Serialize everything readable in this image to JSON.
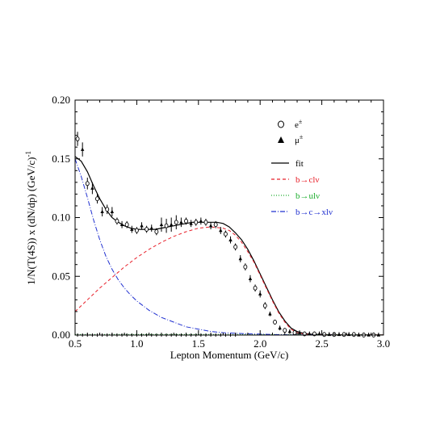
{
  "chart_data": {
    "type": "line",
    "xlabel": "Lepton Momentum (GeV/c)",
    "ylabel": "1/N(T(4S)) x (dN/dp)  (GeV/c)",
    "ylabel_sup": "-1",
    "xlim": [
      0.5,
      3.0
    ],
    "ylim": [
      0.0,
      0.2
    ],
    "x_ticks": [
      {
        "value": 0.5,
        "label": "0.5"
      },
      {
        "value": 1.0,
        "label": "1.0"
      },
      {
        "value": 1.5,
        "label": "1.5"
      },
      {
        "value": 2.0,
        "label": "2.0"
      },
      {
        "value": 2.5,
        "label": "2.5"
      },
      {
        "value": 3.0,
        "label": "3.0"
      }
    ],
    "y_ticks": [
      {
        "value": 0.0,
        "label": "0.00"
      },
      {
        "value": 0.05,
        "label": "0.05"
      },
      {
        "value": 0.1,
        "label": "0.10"
      },
      {
        "value": 0.15,
        "label": "0.15"
      },
      {
        "value": 0.2,
        "label": "0.20"
      }
    ],
    "grid": false,
    "legend_position": "top-right",
    "markers": [
      {
        "key": "e",
        "label": "e",
        "sup": "±",
        "symbol": "open-circle"
      },
      {
        "key": "mu",
        "label": "μ",
        "sup": "±",
        "symbol": "filled-triangle"
      }
    ],
    "series": [
      {
        "key": "fit",
        "name": "fit",
        "color": "#000000",
        "dash": "solid",
        "x": [
          0.5,
          0.55,
          0.6,
          0.65,
          0.7,
          0.75,
          0.8,
          0.85,
          0.9,
          0.95,
          1.0,
          1.05,
          1.1,
          1.15,
          1.2,
          1.25,
          1.3,
          1.35,
          1.4,
          1.45,
          1.5,
          1.55,
          1.6,
          1.65,
          1.7,
          1.75,
          1.8,
          1.85,
          1.9,
          1.95,
          2.0,
          2.05,
          2.1,
          2.15,
          2.2,
          2.25,
          2.3,
          2.35,
          2.4,
          2.5,
          2.6,
          2.7,
          2.8,
          2.9,
          3.0
        ],
        "y": [
          0.152,
          0.148,
          0.139,
          0.127,
          0.116,
          0.107,
          0.1,
          0.096,
          0.093,
          0.091,
          0.09,
          0.09,
          0.09,
          0.09,
          0.091,
          0.092,
          0.093,
          0.094,
          0.095,
          0.096,
          0.096,
          0.096,
          0.096,
          0.096,
          0.095,
          0.092,
          0.087,
          0.081,
          0.073,
          0.063,
          0.052,
          0.041,
          0.03,
          0.02,
          0.012,
          0.006,
          0.003,
          0.0015,
          0.0008,
          0.0004,
          0.0002,
          0.0001,
          0.0001,
          0.0001,
          0.0001
        ]
      },
      {
        "key": "bcl",
        "name": "b→clν",
        "color": "#e8202a",
        "dash": "dashed",
        "x": [
          0.5,
          0.6,
          0.7,
          0.8,
          0.9,
          1.0,
          1.1,
          1.2,
          1.3,
          1.4,
          1.5,
          1.6,
          1.7,
          1.75,
          1.8,
          1.85,
          1.9,
          1.95,
          2.0,
          2.05,
          2.1,
          2.15,
          2.2,
          2.25,
          2.3,
          2.35,
          2.4,
          2.5,
          2.6,
          2.7,
          2.8,
          2.9,
          3.0
        ],
        "y": [
          0.02,
          0.03,
          0.04,
          0.049,
          0.058,
          0.066,
          0.073,
          0.079,
          0.084,
          0.088,
          0.091,
          0.092,
          0.091,
          0.089,
          0.085,
          0.079,
          0.071,
          0.062,
          0.051,
          0.04,
          0.029,
          0.019,
          0.011,
          0.005,
          0.002,
          0.001,
          0.0005,
          0.0002,
          0.0001,
          0.0001,
          0.0001,
          0.0001,
          0.0001
        ]
      },
      {
        "key": "bul",
        "name": "b→ulν",
        "color": "#1fae2f",
        "dash": "dotted",
        "x": [
          0.5,
          1.0,
          1.5,
          2.0,
          2.5,
          3.0
        ],
        "y": [
          0.0005,
          0.0005,
          0.0005,
          0.0005,
          0.0003,
          0.0001
        ]
      },
      {
        "key": "bcxl",
        "name": "b→c→xlν",
        "color": "#2030d0",
        "dash": "dashdot",
        "x": [
          0.5,
          0.55,
          0.6,
          0.65,
          0.7,
          0.75,
          0.8,
          0.85,
          0.9,
          0.95,
          1.0,
          1.1,
          1.2,
          1.3,
          1.4,
          1.5,
          1.6,
          1.7,
          1.8,
          1.9,
          2.0,
          2.1,
          2.2,
          2.3,
          2.5,
          2.75,
          3.0
        ],
        "y": [
          0.15,
          0.135,
          0.117,
          0.098,
          0.081,
          0.067,
          0.056,
          0.047,
          0.04,
          0.034,
          0.029,
          0.021,
          0.015,
          0.011,
          0.007,
          0.005,
          0.003,
          0.002,
          0.0015,
          0.001,
          0.0008,
          0.0005,
          0.0003,
          0.0002,
          0.0001,
          0.0,
          0.0
        ]
      }
    ],
    "data_points": {
      "x": [
        0.52,
        0.56,
        0.6,
        0.64,
        0.68,
        0.72,
        0.76,
        0.8,
        0.84,
        0.88,
        0.92,
        0.96,
        1.0,
        1.04,
        1.08,
        1.12,
        1.16,
        1.2,
        1.24,
        1.28,
        1.32,
        1.36,
        1.4,
        1.44,
        1.48,
        1.52,
        1.56,
        1.6,
        1.64,
        1.68,
        1.72,
        1.76,
        1.8,
        1.84,
        1.88,
        1.92,
        1.96,
        2.0,
        2.04,
        2.08,
        2.12,
        2.16,
        2.2,
        2.24,
        2.28,
        2.32,
        2.36,
        2.4,
        2.44,
        2.48,
        2.52,
        2.56,
        2.6,
        2.64,
        2.68,
        2.72,
        2.76,
        2.8,
        2.84,
        2.88,
        2.92,
        2.96
      ],
      "y": [
        0.167,
        0.158,
        0.129,
        0.125,
        0.116,
        0.105,
        0.107,
        0.105,
        0.097,
        0.094,
        0.094,
        0.09,
        0.089,
        0.093,
        0.09,
        0.091,
        0.088,
        0.094,
        0.093,
        0.094,
        0.096,
        0.096,
        0.097,
        0.095,
        0.096,
        0.097,
        0.096,
        0.093,
        0.094,
        0.089,
        0.086,
        0.081,
        0.075,
        0.065,
        0.058,
        0.048,
        0.04,
        0.035,
        0.025,
        0.018,
        0.011,
        0.006,
        0.004,
        0.003,
        0.002,
        0.002,
        0.001,
        0.001,
        0.001,
        0.001,
        0.0005,
        0.0005,
        0.0005,
        0.0005,
        0.0005,
        0.0005,
        0.0005,
        0.0,
        0.0,
        0.0,
        0.0,
        0.0
      ],
      "err": [
        0.006,
        0.006,
        0.005,
        0.005,
        0.004,
        0.004,
        0.004,
        0.004,
        0.003,
        0.003,
        0.003,
        0.003,
        0.003,
        0.003,
        0.003,
        0.003,
        0.003,
        0.006,
        0.006,
        0.006,
        0.006,
        0.004,
        0.003,
        0.003,
        0.003,
        0.003,
        0.003,
        0.003,
        0.003,
        0.003,
        0.003,
        0.003,
        0.003,
        0.003,
        0.003,
        0.003,
        0.003,
        0.003,
        0.003,
        0.002,
        0.002,
        0.002,
        0.002,
        0.002,
        0.002,
        0.002,
        0.002,
        0.002,
        0.002,
        0.002,
        0.002,
        0.002,
        0.002,
        0.002,
        0.002,
        0.002,
        0.002,
        0.002,
        0.002,
        0.002,
        0.002,
        0.002
      ]
    },
    "low_points": {
      "x": [
        0.52,
        0.56,
        0.6,
        0.64,
        0.68,
        0.72,
        0.76,
        0.8,
        0.84,
        0.88,
        0.92,
        0.96,
        1.0,
        1.04,
        1.08,
        1.12,
        1.16,
        1.2,
        1.24,
        1.28,
        1.32,
        1.36,
        1.4,
        1.44,
        1.48,
        1.52,
        1.56,
        1.6,
        1.64,
        1.68,
        1.72,
        1.76,
        1.8
      ],
      "y": [
        0.0,
        0.0,
        0.0,
        0.0,
        0.0,
        0.0,
        0.0,
        0.0,
        0.0,
        0.0,
        0.0,
        0.0,
        0.0,
        0.0,
        0.0,
        0.0,
        0.0,
        0.0,
        0.0,
        0.0,
        0.0,
        0.0,
        0.0,
        0.0,
        0.0,
        0.0,
        0.0,
        0.0,
        0.0,
        0.0,
        0.0,
        0.0,
        0.0
      ]
    }
  }
}
